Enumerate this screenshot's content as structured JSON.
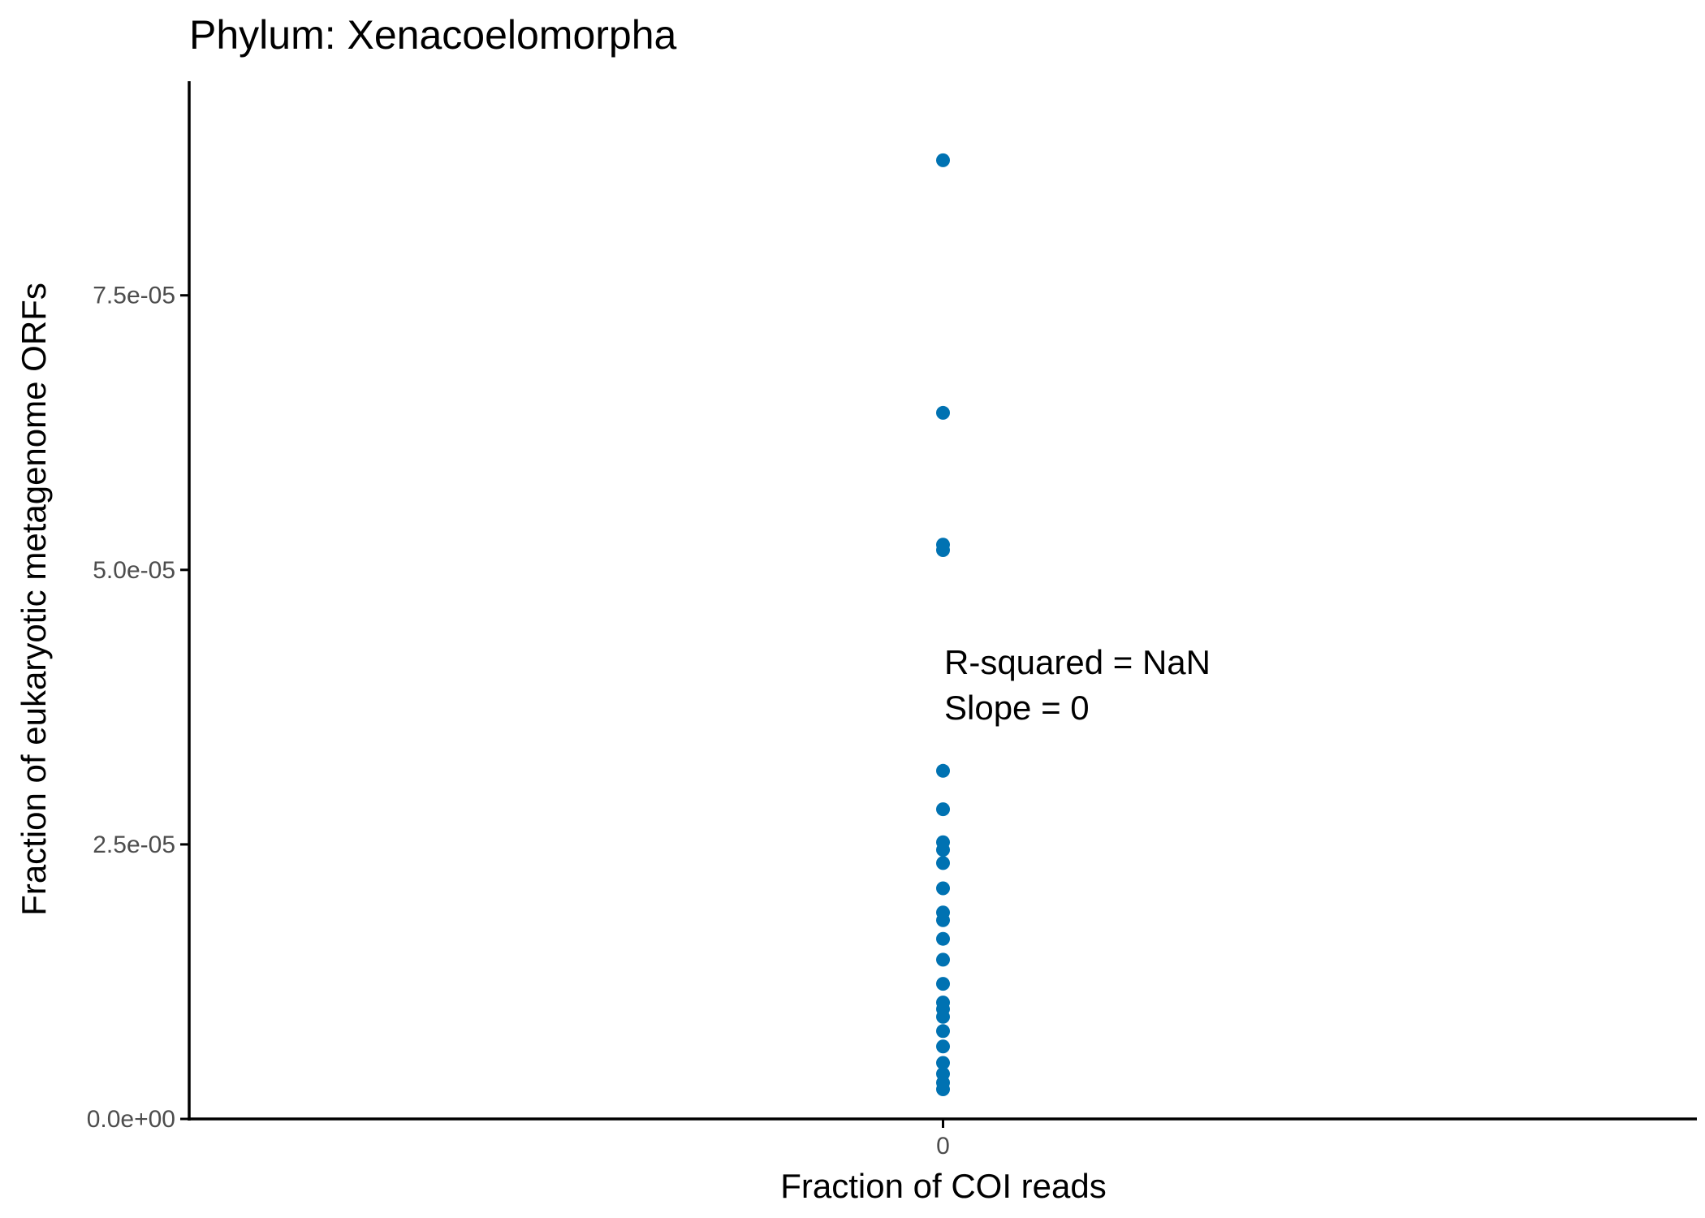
{
  "chart_data": {
    "type": "scatter",
    "title": "Phylum:  Xenacoelomorpha",
    "xlabel": "Fraction of COI reads",
    "ylabel": "Fraction of eukaryotic metagenome ORFs",
    "x_ticks": [
      {
        "value": 0,
        "label": "0"
      }
    ],
    "y_ticks": [
      {
        "value": 0,
        "label": "0.0e+00"
      },
      {
        "value": 2.5e-05,
        "label": "2.5e-05"
      },
      {
        "value": 5e-05,
        "label": "5.0e-05"
      },
      {
        "value": 7.5e-05,
        "label": "7.5e-05"
      }
    ],
    "xlim": [
      -1,
      1
    ],
    "ylim": [
      0,
      9.45e-05
    ],
    "grid": false,
    "point_color": "#0072b2",
    "annotations": [
      "R-squared =  NaN",
      "Slope =  0"
    ],
    "points": [
      {
        "x": 0,
        "y": 8.73e-05
      },
      {
        "x": 0,
        "y": 6.43e-05
      },
      {
        "x": 0,
        "y": 5.23e-05
      },
      {
        "x": 0,
        "y": 5.18e-05
      },
      {
        "x": 0,
        "y": 3.17e-05
      },
      {
        "x": 0,
        "y": 2.82e-05
      },
      {
        "x": 0,
        "y": 2.52e-05
      },
      {
        "x": 0,
        "y": 2.45e-05
      },
      {
        "x": 0,
        "y": 2.33e-05
      },
      {
        "x": 0,
        "y": 2.1e-05
      },
      {
        "x": 0,
        "y": 1.88e-05
      },
      {
        "x": 0,
        "y": 1.81e-05
      },
      {
        "x": 0,
        "y": 1.64e-05
      },
      {
        "x": 0,
        "y": 1.45e-05
      },
      {
        "x": 0,
        "y": 1.23e-05
      },
      {
        "x": 0,
        "y": 1.06e-05
      },
      {
        "x": 0,
        "y": 1e-05
      },
      {
        "x": 0,
        "y": 9.3e-06
      },
      {
        "x": 0,
        "y": 8e-06
      },
      {
        "x": 0,
        "y": 6.6e-06
      },
      {
        "x": 0,
        "y": 5.1e-06
      },
      {
        "x": 0,
        "y": 4.1e-06
      },
      {
        "x": 0,
        "y": 3.3e-06
      },
      {
        "x": 0,
        "y": 2.7e-06
      }
    ]
  }
}
